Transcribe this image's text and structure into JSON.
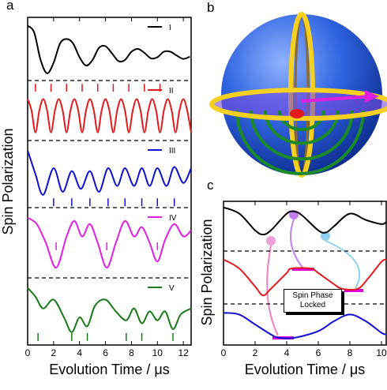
{
  "chart_data": [
    {
      "type": "line",
      "label": "a",
      "x_label": "Evolution Time / μs",
      "y_label": "Spin Polarization",
      "xlim": [
        0,
        12.6
      ],
      "xticks": [
        0,
        2,
        4,
        6,
        8,
        10,
        12
      ],
      "ylim": [
        0,
        1
      ],
      "series": [
        {
          "name": "I",
          "color": "#000000",
          "x": [
            0,
            0.5,
            1,
            1.5,
            2,
            2.5,
            3,
            3.5,
            4,
            4.5,
            5,
            5.5,
            6,
            6.5,
            7,
            7.5,
            8,
            8.5,
            9,
            9.5,
            10,
            10.5,
            11,
            11.5,
            12,
            12.5
          ],
          "values": [
            0.92,
            0.8,
            0.3,
            0.06,
            0.25,
            0.6,
            0.68,
            0.6,
            0.35,
            0.2,
            0.3,
            0.52,
            0.55,
            0.42,
            0.28,
            0.3,
            0.45,
            0.5,
            0.43,
            0.33,
            0.35,
            0.45,
            0.45,
            0.38,
            0.32,
            0.36
          ],
          "markers": []
        },
        {
          "name": "II",
          "color": "#e31a1c",
          "x": [
            0,
            0.3,
            0.6,
            0.9,
            1.2,
            1.5,
            1.8,
            2.1,
            2.4,
            2.7,
            3.0,
            3.3,
            3.6,
            3.9,
            4.2,
            4.5,
            4.8,
            5.1,
            5.4,
            5.7,
            6.0,
            6.3,
            6.6,
            6.9,
            7.2,
            7.5,
            7.8,
            8.1,
            8.4,
            8.7,
            9.0,
            9.3,
            9.6,
            9.9,
            10.2,
            10.5,
            10.8,
            11.1,
            11.4,
            11.7,
            12.0,
            12.3,
            12.6
          ],
          "values": [
            0.72,
            0.5,
            0.08,
            0.5,
            0.72,
            0.5,
            0.08,
            0.5,
            0.72,
            0.5,
            0.08,
            0.5,
            0.72,
            0.5,
            0.08,
            0.5,
            0.72,
            0.5,
            0.08,
            0.5,
            0.72,
            0.5,
            0.08,
            0.5,
            0.72,
            0.5,
            0.08,
            0.5,
            0.72,
            0.5,
            0.08,
            0.5,
            0.72,
            0.5,
            0.08,
            0.5,
            0.72,
            0.5,
            0.08,
            0.5,
            0.72,
            0.5,
            0.08
          ],
          "markers": [
            0.6,
            1.8,
            3.0,
            4.2,
            5.4,
            6.6,
            7.8,
            9.0,
            10.2
          ]
        },
        {
          "name": "III",
          "color": "#1010d0",
          "x": [
            0,
            0.6,
            1.2,
            2,
            2.7,
            3.4,
            4.1,
            4.8,
            5.5,
            6.2,
            6.9,
            7.5,
            8.2,
            8.8,
            9.4,
            10,
            10.7,
            11.3,
            12,
            12.6
          ],
          "values": [
            0.9,
            0.5,
            0.15,
            0.6,
            0.2,
            0.55,
            0.25,
            0.55,
            0.2,
            0.6,
            0.3,
            0.6,
            0.3,
            0.6,
            0.3,
            0.6,
            0.3,
            0.62,
            0.35,
            0.6
          ],
          "markers": [
            2,
            3.4,
            4.8,
            6.2,
            7.5,
            8.8,
            10,
            11.3
          ]
        },
        {
          "name": "IV",
          "color": "#e020e0",
          "x": [
            0,
            0.7,
            1.4,
            2.2,
            3,
            3.6,
            4.2,
            4.8,
            5.4,
            6.1,
            6.8,
            7.5,
            8.2,
            8.8,
            9.4,
            10,
            10.6,
            11.3,
            12,
            12.6
          ],
          "values": [
            0.9,
            0.8,
            0.5,
            0.1,
            0.6,
            0.85,
            0.6,
            0.8,
            0.5,
            0.1,
            0.5,
            0.85,
            0.6,
            0.75,
            0.5,
            0.2,
            0.55,
            0.8,
            0.6,
            0.7
          ],
          "markers": [
            2.2,
            6.1,
            10
          ]
        },
        {
          "name": "V",
          "color": "#1a7a1a",
          "x": [
            0,
            0.6,
            1.2,
            2,
            2.8,
            3.4,
            4,
            4.6,
            5.2,
            6,
            6.8,
            7.6,
            8.2,
            8.8,
            9.4,
            10,
            10.6,
            11.2,
            11.8,
            12.6
          ],
          "values": [
            0.9,
            0.75,
            0.55,
            0.7,
            0.4,
            0.15,
            0.4,
            0.25,
            0.6,
            0.7,
            0.5,
            0.35,
            0.55,
            0.3,
            0.5,
            0.35,
            0.5,
            0.2,
            0.45,
            0.55
          ],
          "markers": [
            0.8,
            3.4,
            4.6,
            7.6,
            8.8,
            11.2
          ]
        }
      ]
    },
    {
      "type": "line",
      "label": "c",
      "x_label": "Evolution Time / μs",
      "y_label": "Spin Polarization",
      "xlim": [
        0,
        10.3
      ],
      "xticks": [
        0,
        2,
        4,
        6,
        8,
        10
      ],
      "ylim": [
        0,
        1
      ],
      "annotation": "Spin Phase Locked",
      "series": [
        {
          "color": "#000000",
          "x": [
            0,
            1,
            2,
            2.5,
            3,
            4,
            4.5,
            5,
            6,
            6.5,
            7,
            8,
            9,
            10,
            10.3
          ],
          "values": [
            0.95,
            0.8,
            0.4,
            0.3,
            0.4,
            0.8,
            0.85,
            0.75,
            0.4,
            0.35,
            0.5,
            0.8,
            0.65,
            0.55,
            0.6
          ]
        },
        {
          "color": "#e31a1c",
          "x": [
            0,
            1,
            2,
            2.5,
            3,
            4,
            4.3,
            5.5,
            6,
            7,
            7.5,
            8.5,
            9.2,
            10,
            10.3
          ],
          "values": [
            0.9,
            0.7,
            0.3,
            0.1,
            0.25,
            0.6,
            0.7,
            0.7,
            0.6,
            0.35,
            0.25,
            0.25,
            0.5,
            0.85,
            0.9
          ]
        },
        {
          "color": "#1010d0",
          "x": [
            0,
            1,
            2,
            3,
            3.5,
            4.5,
            6,
            7,
            8,
            9,
            10,
            10.3
          ],
          "values": [
            0.85,
            0.8,
            0.5,
            0.2,
            0.1,
            0.1,
            0.3,
            0.6,
            0.8,
            0.6,
            0.25,
            0.2
          ]
        }
      ]
    }
  ],
  "panel_b": {
    "label": "b"
  }
}
